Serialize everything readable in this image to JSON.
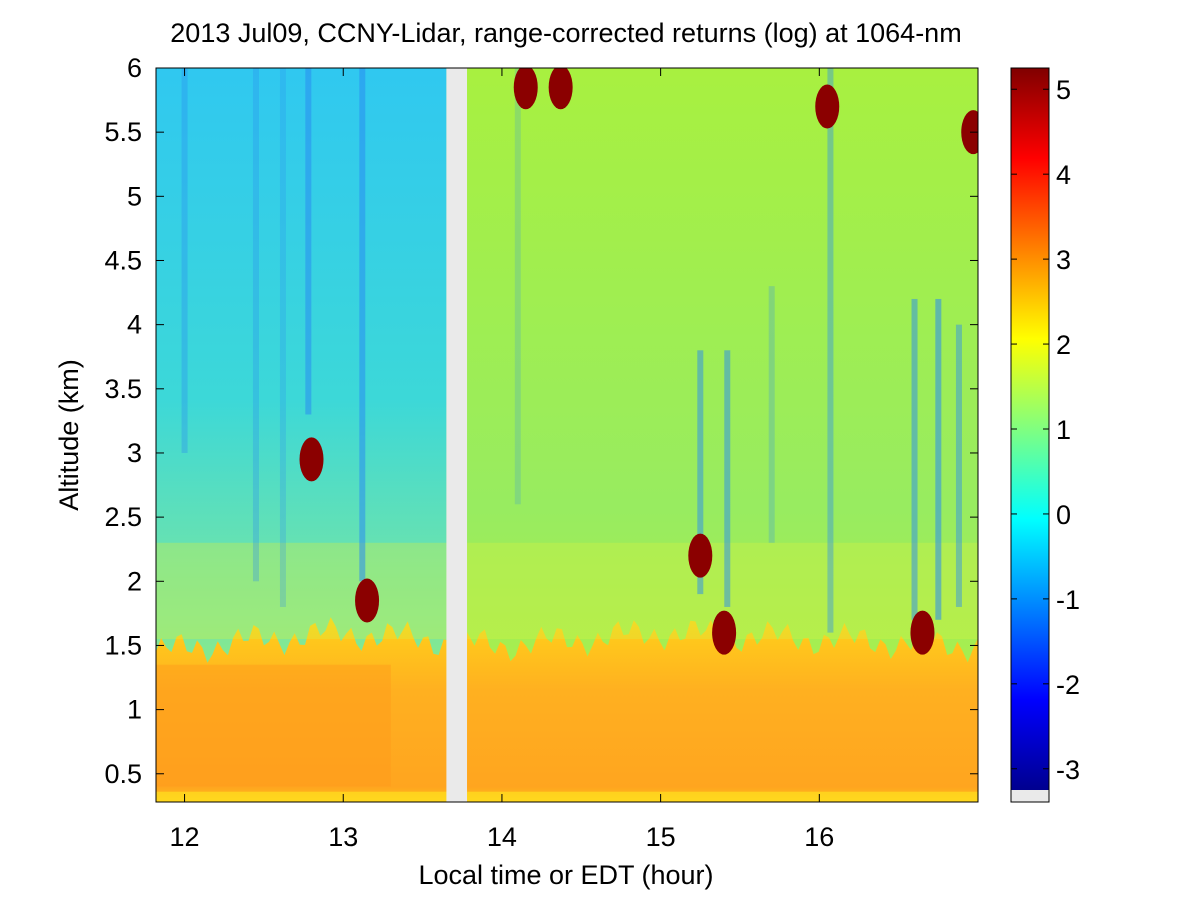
{
  "chart_data": {
    "type": "heatmap",
    "title": "2013 Jul09, CCNY-Lidar, range-corrected returns (log) at 1064-nm",
    "xlabel": "Local time or EDT (hour)",
    "ylabel": "Altitude (km)",
    "xlim": [
      11.82,
      17.0
    ],
    "ylim": [
      0.28,
      6.0
    ],
    "x_ticks": [
      12,
      13,
      14,
      15,
      16
    ],
    "x_tick_labels": [
      "12",
      "13",
      "14",
      "15",
      "16"
    ],
    "y_ticks": [
      0.5,
      1,
      1.5,
      2,
      2.5,
      3,
      3.5,
      4,
      4.5,
      5,
      5.5,
      6
    ],
    "y_tick_labels": [
      "0.5",
      "1",
      "1.5",
      "2",
      "2.5",
      "3",
      "3.5",
      "4",
      "4.5",
      "5",
      "5.5",
      "6"
    ],
    "colorbar": {
      "range": [
        -3.25,
        5.25
      ],
      "ticks": [
        -3,
        -2,
        -1,
        0,
        1,
        2,
        3,
        4,
        5
      ],
      "tick_labels": [
        "-3",
        "-2",
        "-1",
        "0",
        "1",
        "2",
        "3",
        "4",
        "5"
      ],
      "colormap": "jet"
    },
    "data_gap": {
      "x_start": 13.65,
      "x_end": 13.78
    },
    "grid": false,
    "layers": {
      "boundary_layer": [
        {
          "x": 11.82,
          "top_km": 1.45,
          "value": 3.0
        },
        {
          "x": 12.5,
          "top_km": 1.55,
          "value": 2.5
        },
        {
          "x": 13.0,
          "top_km": 1.6,
          "value": 2.4
        },
        {
          "x": 14.0,
          "top_km": 1.5,
          "value": 2.4
        },
        {
          "x": 15.0,
          "top_km": 1.6,
          "value": 2.3
        },
        {
          "x": 16.0,
          "top_km": 1.55,
          "value": 2.4
        },
        {
          "x": 17.0,
          "top_km": 1.5,
          "value": 2.5
        }
      ],
      "free_troposphere_value": 0.6,
      "upper_left_value": 0.1,
      "upper_right_value": 1.2
    },
    "clouds": [
      {
        "x": 12.8,
        "alt_km": 2.95,
        "value": 5.2
      },
      {
        "x": 13.15,
        "alt_km": 1.85,
        "value": 5.2
      },
      {
        "x": 14.15,
        "alt_km": 5.85,
        "value": 5.2
      },
      {
        "x": 14.37,
        "alt_km": 5.85,
        "value": 5.2
      },
      {
        "x": 15.25,
        "alt_km": 2.2,
        "value": 5.2
      },
      {
        "x": 15.4,
        "alt_km": 1.6,
        "value": 5.2
      },
      {
        "x": 16.05,
        "alt_km": 5.7,
        "value": 5.2
      },
      {
        "x": 16.65,
        "alt_km": 1.6,
        "value": 5.2
      },
      {
        "x": 16.97,
        "alt_km": 5.5,
        "value": 5.2
      }
    ]
  }
}
